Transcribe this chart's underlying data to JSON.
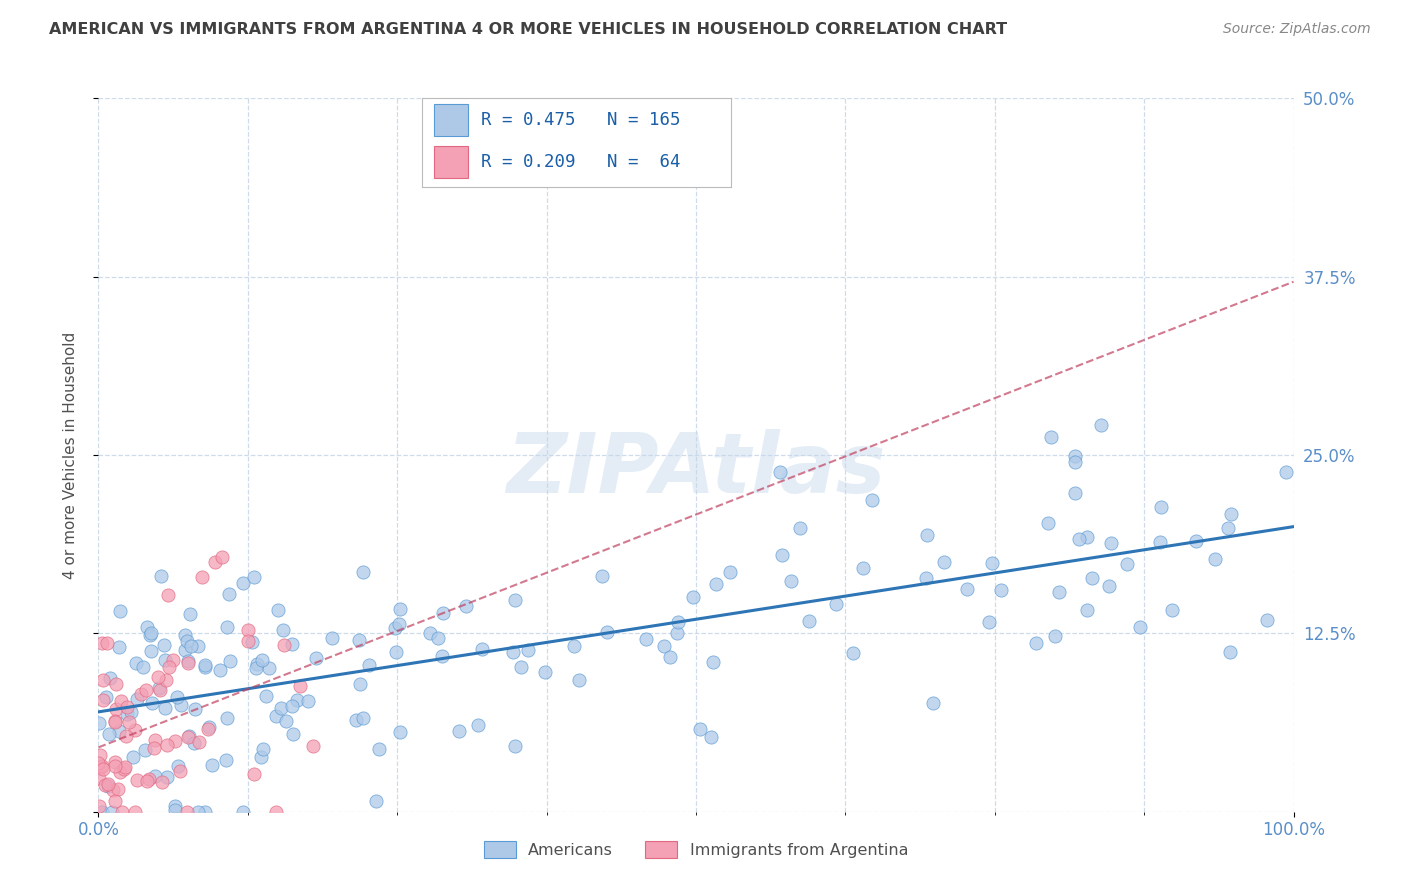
{
  "title": "AMERICAN VS IMMIGRANTS FROM ARGENTINA 4 OR MORE VEHICLES IN HOUSEHOLD CORRELATION CHART",
  "source": "Source: ZipAtlas.com",
  "ylabel": "4 or more Vehicles in Household",
  "xlim": [
    0,
    100
  ],
  "ylim": [
    0,
    50
  ],
  "ytick_labels": [
    "",
    "12.5%",
    "25.0%",
    "37.5%",
    "50.0%"
  ],
  "ytick_vals": [
    0,
    12.5,
    25,
    37.5,
    50
  ],
  "blue_fill": "#aec9e8",
  "blue_edge": "#5b9bd5",
  "pink_fill": "#f4a0b5",
  "pink_edge": "#e06880",
  "blue_line_color": "#2e75b6",
  "pink_line_color": "#c04060",
  "r_blue": 0.475,
  "n_blue": 165,
  "r_pink": 0.209,
  "n_pink": 64,
  "watermark": "ZIPAtlas",
  "legend_label_blue": "Americans",
  "legend_label_pink": "Immigrants from Argentina",
  "background_color": "#ffffff",
  "grid_color": "#c8d8e8",
  "title_color": "#404040",
  "axis_label_color": "#505050",
  "tick_color": "#5a8fc8",
  "legend_text_color": "#1a5fa8"
}
